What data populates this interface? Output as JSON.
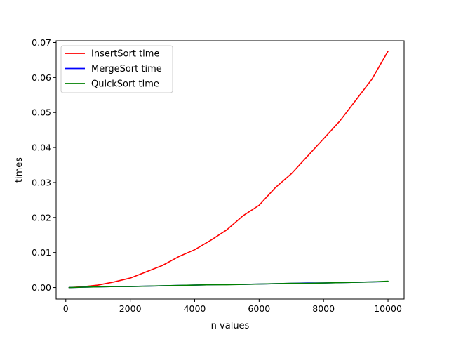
{
  "chart_data": {
    "type": "line",
    "title": "",
    "xlabel": "n values",
    "ylabel": "times",
    "xlim": [
      -300,
      10500
    ],
    "ylim": [
      -0.0033,
      0.0705
    ],
    "grid": false,
    "legend_position": "top-left",
    "x_ticks": [
      {
        "value": 0,
        "label": "0"
      },
      {
        "value": 2000,
        "label": "2000"
      },
      {
        "value": 4000,
        "label": "4000"
      },
      {
        "value": 6000,
        "label": "6000"
      },
      {
        "value": 8000,
        "label": "8000"
      },
      {
        "value": 10000,
        "label": "10000"
      }
    ],
    "y_ticks": [
      {
        "value": 0.0,
        "label": "0.00"
      },
      {
        "value": 0.01,
        "label": "0.01"
      },
      {
        "value": 0.02,
        "label": "0.02"
      },
      {
        "value": 0.03,
        "label": "0.03"
      },
      {
        "value": 0.04,
        "label": "0.04"
      },
      {
        "value": 0.05,
        "label": "0.05"
      },
      {
        "value": 0.06,
        "label": "0.06"
      },
      {
        "value": 0.07,
        "label": "0.07"
      }
    ],
    "x": [
      100,
      500,
      1000,
      1500,
      2000,
      2500,
      3000,
      3500,
      4000,
      4500,
      5000,
      5500,
      6000,
      6500,
      7000,
      7500,
      8000,
      8500,
      9000,
      9500,
      10000
    ],
    "series": [
      {
        "name": "InsertSort time",
        "color": "#ff0000",
        "values": [
          0.0,
          0.0002,
          0.0007,
          0.0016,
          0.0027,
          0.0045,
          0.0063,
          0.0088,
          0.0108,
          0.0135,
          0.0165,
          0.0205,
          0.0235,
          0.0285,
          0.0325,
          0.0375,
          0.0425,
          0.0475,
          0.0535,
          0.0595,
          0.0675
        ]
      },
      {
        "name": "MergeSort time",
        "color": "#0000ff",
        "values": [
          0.0,
          0.0001,
          0.0002,
          0.0003,
          0.0003,
          0.0004,
          0.0005,
          0.0006,
          0.0007,
          0.0008,
          0.0009,
          0.0009,
          0.001,
          0.0011,
          0.0012,
          0.0013,
          0.0013,
          0.0014,
          0.0015,
          0.0016,
          0.0017
        ]
      },
      {
        "name": "QuickSort time",
        "color": "#008000",
        "values": [
          0.0,
          0.0001,
          0.0002,
          0.0003,
          0.0003,
          0.0004,
          0.0005,
          0.0006,
          0.0007,
          0.0008,
          0.0008,
          0.0009,
          0.001,
          0.0011,
          0.0012,
          0.0012,
          0.0013,
          0.0014,
          0.0015,
          0.0016,
          0.0018
        ]
      }
    ]
  }
}
